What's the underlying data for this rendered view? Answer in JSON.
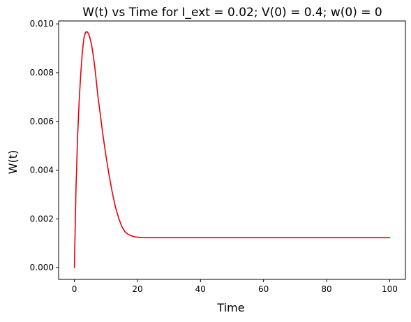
{
  "chart_data": {
    "type": "line",
    "title": "W(t) vs Time for I_ext = 0.02; V(0) = 0.4; w(0) = 0",
    "xlabel": "Time",
    "ylabel": "W(t)",
    "xlim": [
      -5,
      105
    ],
    "ylim": [
      -0.00048,
      0.01012
    ],
    "xticks": [
      0,
      20,
      40,
      60,
      80,
      100
    ],
    "xtick_labels": [
      "0",
      "20",
      "40",
      "60",
      "80",
      "100"
    ],
    "yticks": [
      0.0,
      0.002,
      0.004,
      0.006,
      0.008,
      0.01
    ],
    "ytick_labels": [
      "0.000",
      "0.002",
      "0.004",
      "0.006",
      "0.008",
      "0.010"
    ],
    "grid": false,
    "series": [
      {
        "color": "#e8000b",
        "x": [
          0,
          0.5,
          1,
          1.5,
          2,
          2.5,
          3,
          3.5,
          4,
          4.5,
          5,
          5.5,
          6,
          6.5,
          7,
          7.5,
          8,
          8.5,
          9,
          10,
          11,
          12,
          13,
          14,
          15,
          16,
          17,
          18,
          19,
          20,
          21,
          22,
          23,
          24,
          25,
          27,
          30,
          35,
          40,
          50,
          60,
          70,
          80,
          90,
          100
        ],
        "y": [
          0.0,
          0.0032,
          0.0053,
          0.0068,
          0.0079,
          0.0088,
          0.0094,
          0.00965,
          0.00968,
          0.0096,
          0.0094,
          0.0091,
          0.0087,
          0.0082,
          0.0076,
          0.007,
          0.0065,
          0.006,
          0.0055,
          0.0046,
          0.0038,
          0.0031,
          0.0025,
          0.00205,
          0.0017,
          0.00148,
          0.00137,
          0.00131,
          0.00127,
          0.00125,
          0.00124,
          0.00123,
          0.00123,
          0.00123,
          0.00123,
          0.00123,
          0.00123,
          0.00123,
          0.00123,
          0.00123,
          0.00123,
          0.00123,
          0.00123,
          0.00123,
          0.00123
        ]
      }
    ]
  }
}
